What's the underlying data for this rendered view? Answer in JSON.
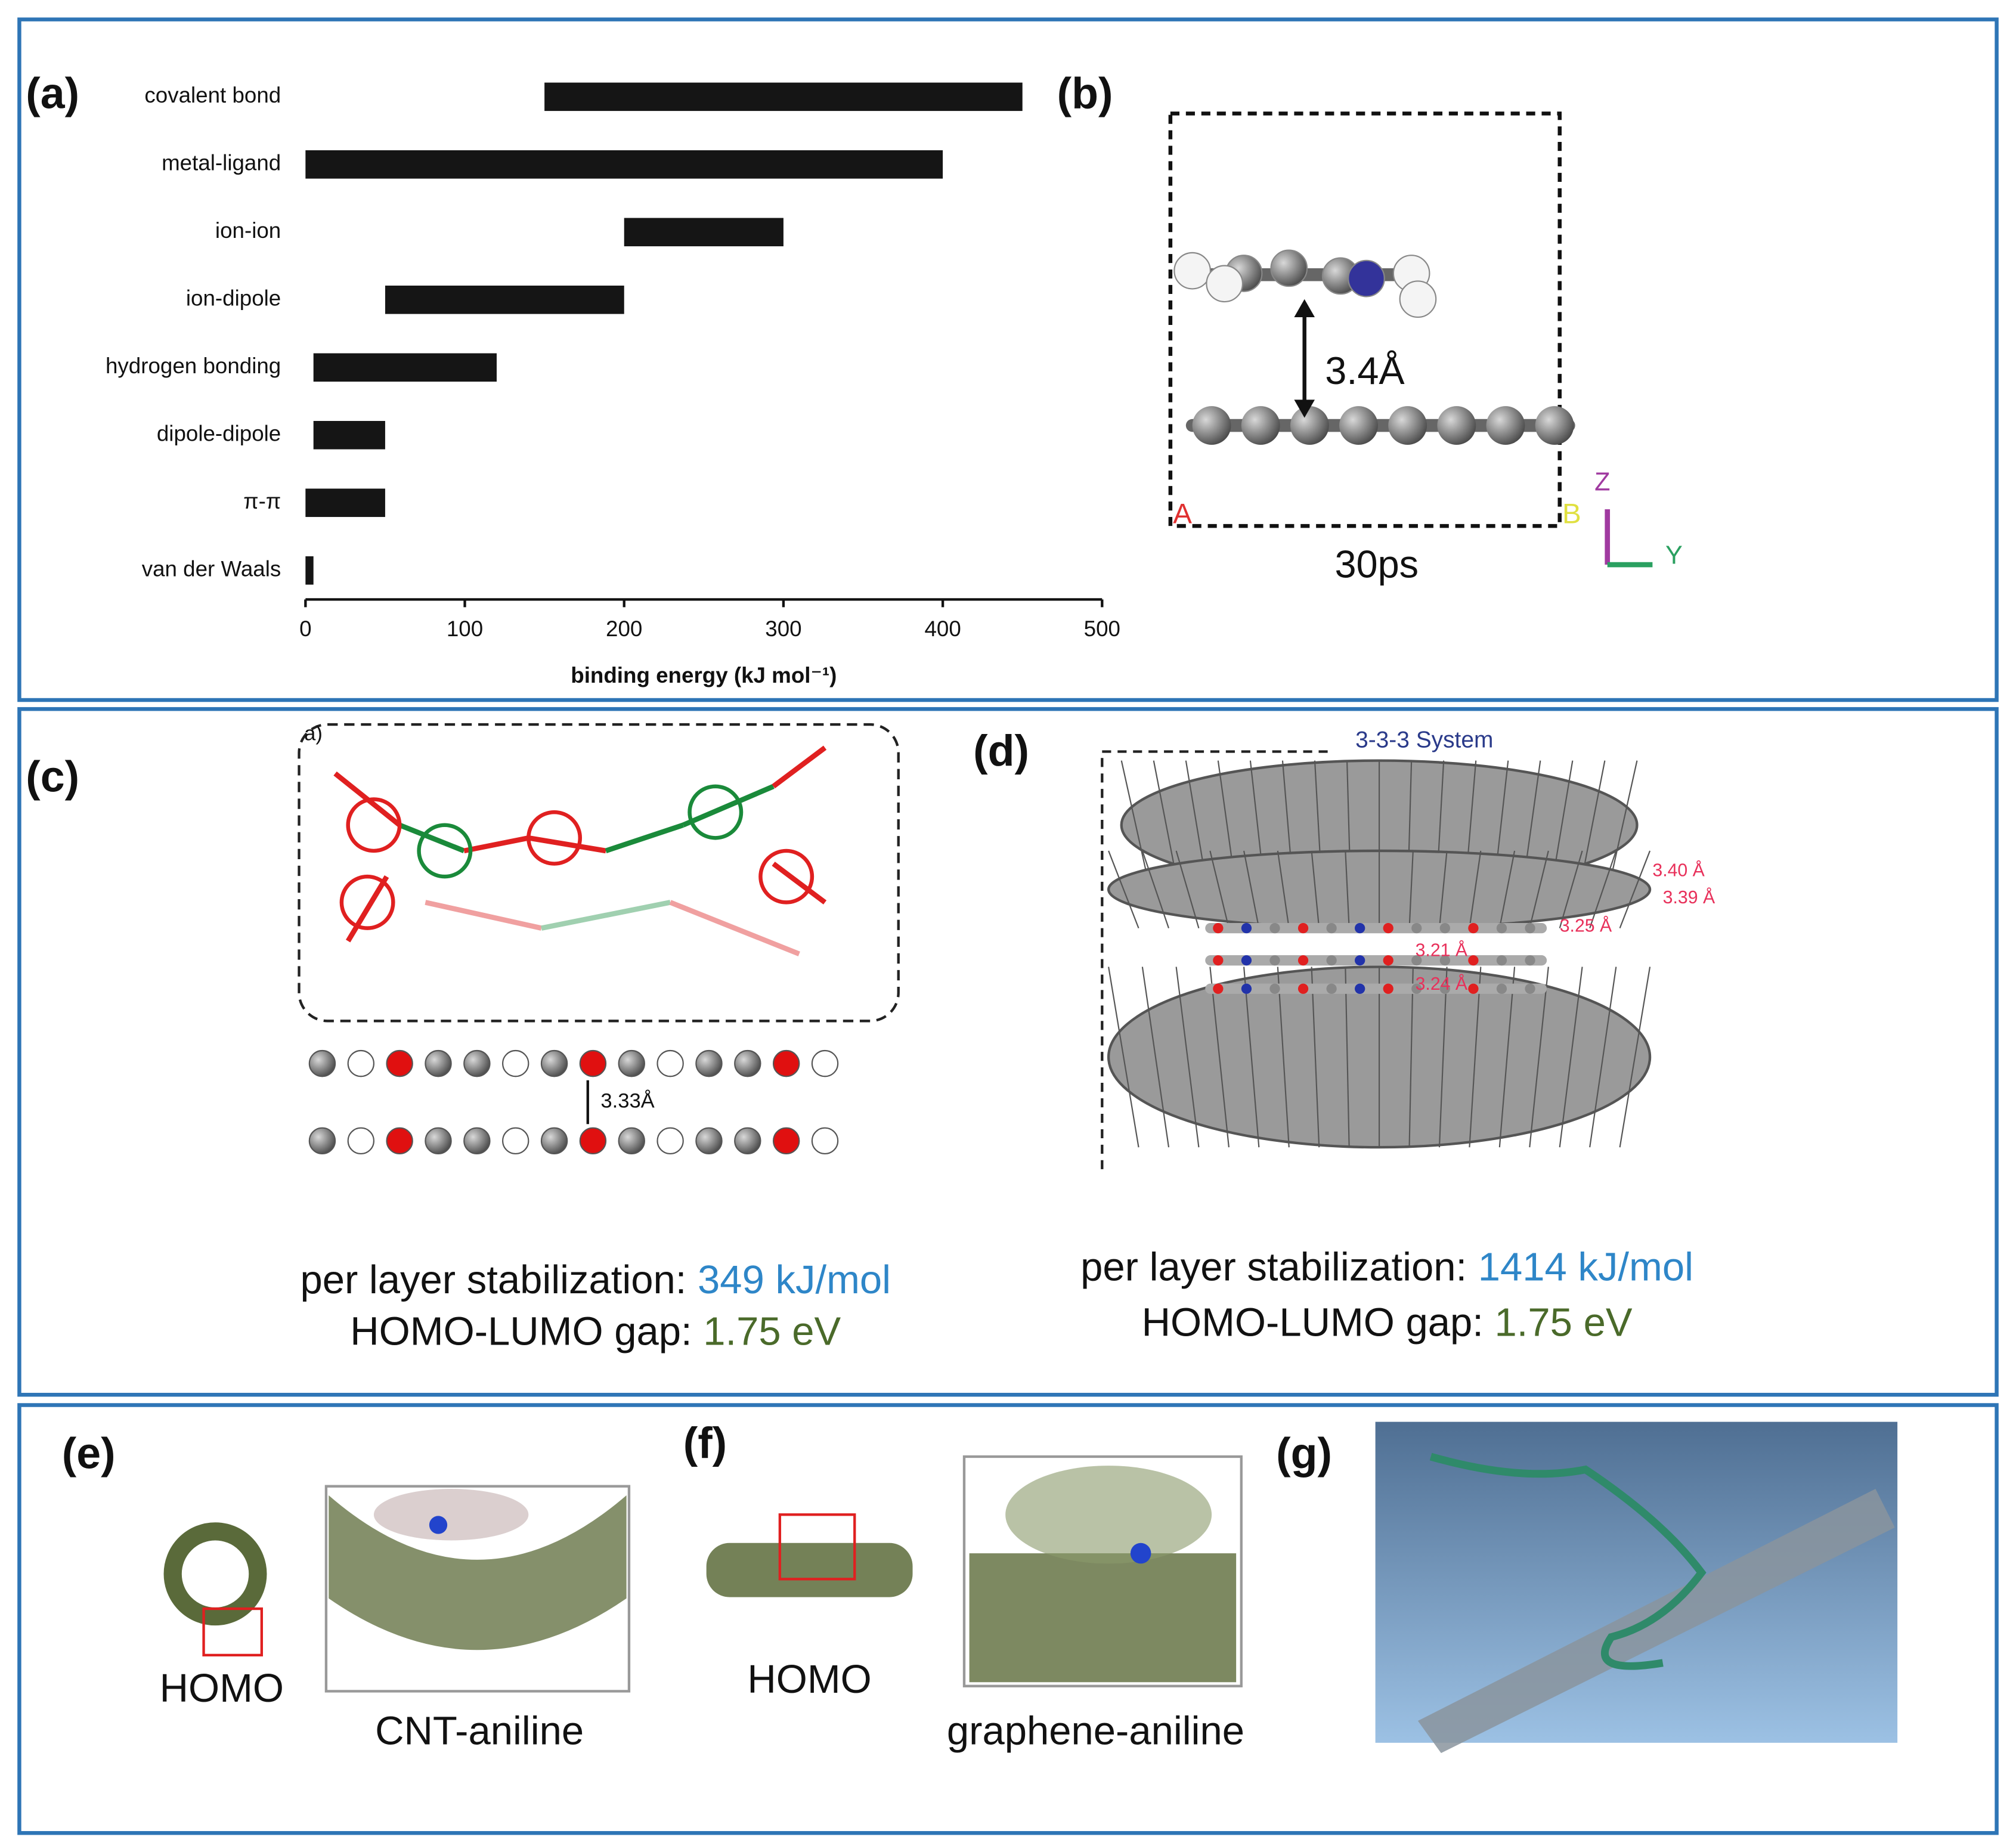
{
  "chart_data": {
    "type": "bar",
    "orientation": "horizontal",
    "panel_label": "(a)",
    "categories": [
      "covalent bond",
      "metal-ligand",
      "ion-ion",
      "ion-dipole",
      "hydrogen bonding",
      "dipole-dipole",
      "π-π",
      "van der Waals"
    ],
    "low": [
      150,
      0,
      200,
      50,
      5,
      5,
      0,
      0
    ],
    "high": [
      450,
      400,
      300,
      200,
      120,
      50,
      50,
      5
    ],
    "color": "#151515",
    "xlim": [
      0,
      500
    ],
    "xticks": [
      0,
      100,
      200,
      300,
      400,
      500
    ],
    "xlabel": "binding energy (kJ mol⁻¹)"
  },
  "panels": {
    "b": {
      "label": "(b)",
      "distance": "3.4Å",
      "time": "30ps",
      "corner_a": "A",
      "corner_b": "B",
      "axis_z": "Z",
      "axis_y": "Y"
    },
    "c": {
      "label": "(c)",
      "inset_label": "a)",
      "distance": "3.33Å",
      "stabilization_label": "per layer stabilization:",
      "stabilization_value": "349 kJ/mol",
      "gap_label": "HOMO-LUMO gap:",
      "gap_value": "1.75 eV"
    },
    "d": {
      "label": "(d)",
      "system": "3-3-3 System",
      "distances": [
        "3.40 Å",
        "3.39 Å",
        "3.25 Å",
        "3.21 Å",
        "3.24 Å"
      ],
      "stabilization_label": "per layer stabilization:",
      "stabilization_value": "1414 kJ/mol",
      "gap_label": "HOMO-LUMO gap:",
      "gap_value": "1.75 eV"
    },
    "e": {
      "label": "(e)",
      "orbital": "HOMO",
      "caption": "CNT-aniline"
    },
    "f": {
      "label": "(f)",
      "orbital": "HOMO",
      "caption": "graphene-aniline"
    },
    "g": {
      "label": "(g)"
    }
  }
}
